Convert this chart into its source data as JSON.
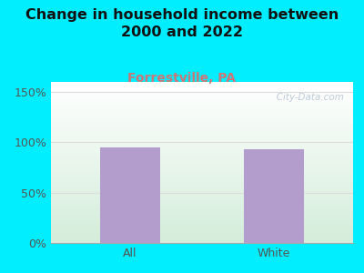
{
  "title": "Change in household income between\n2000 and 2022",
  "subtitle": "Forrestville, PA",
  "categories": [
    "All",
    "White"
  ],
  "values": [
    95,
    93
  ],
  "bar_color": "#b39dcd",
  "background_outer": "#00eeff",
  "background_plot": "#e8f5e9",
  "yticks": [
    0,
    50,
    100,
    150
  ],
  "ytick_labels": [
    "0%",
    "50%",
    "100%",
    "150%"
  ],
  "ylim": [
    0,
    160
  ],
  "title_fontsize": 11.5,
  "subtitle_fontsize": 10,
  "subtitle_color": "#cc7777",
  "title_color": "#111111",
  "tick_color": "#555555",
  "tick_fontsize": 9,
  "watermark": "   City-Data.com",
  "grid_color": "#dddddd",
  "bar_width": 0.42
}
